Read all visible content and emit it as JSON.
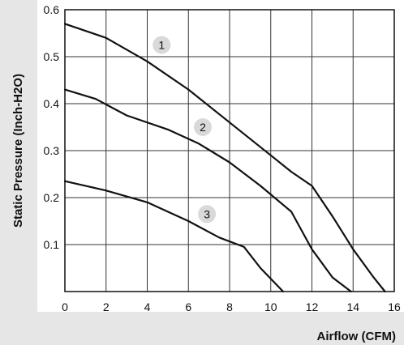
{
  "chart_data": {
    "type": "line",
    "xlabel": "Airflow (CFM)",
    "ylabel": "Static Pressure (Inch-H2O)",
    "xlim": [
      0,
      16
    ],
    "ylim": [
      0,
      0.6
    ],
    "x_ticks": [
      "0",
      "2",
      "4",
      "6",
      "8",
      "10",
      "12",
      "14",
      "16"
    ],
    "y_ticks": [
      "0.1",
      "0.2",
      "0.3",
      "0.4",
      "0.5",
      "0.6"
    ],
    "grid": true,
    "series": [
      {
        "name": "1",
        "points": [
          [
            0,
            0.57
          ],
          [
            2,
            0.54
          ],
          [
            4,
            0.49
          ],
          [
            6,
            0.43
          ],
          [
            8,
            0.36
          ],
          [
            10,
            0.29
          ],
          [
            11,
            0.255
          ],
          [
            12,
            0.225
          ],
          [
            13,
            0.16
          ],
          [
            14,
            0.09
          ],
          [
            15,
            0.03
          ],
          [
            15.55,
            0
          ]
        ]
      },
      {
        "name": "2",
        "points": [
          [
            0,
            0.43
          ],
          [
            1.5,
            0.41
          ],
          [
            3,
            0.375
          ],
          [
            5,
            0.345
          ],
          [
            6.5,
            0.315
          ],
          [
            8,
            0.275
          ],
          [
            9.5,
            0.225
          ],
          [
            11,
            0.17
          ],
          [
            12,
            0.09
          ],
          [
            13,
            0.03
          ],
          [
            13.9,
            0
          ]
        ]
      },
      {
        "name": "3",
        "points": [
          [
            0,
            0.235
          ],
          [
            2,
            0.215
          ],
          [
            4,
            0.19
          ],
          [
            6,
            0.15
          ],
          [
            7.5,
            0.115
          ],
          [
            8.7,
            0.095
          ],
          [
            9.5,
            0.05
          ],
          [
            10.6,
            0
          ]
        ]
      }
    ],
    "series_labels": [
      {
        "text": "1",
        "x": 4.7,
        "y": 0.525
      },
      {
        "text": "2",
        "x": 6.7,
        "y": 0.35
      },
      {
        "text": "3",
        "x": 6.9,
        "y": 0.165
      }
    ],
    "colors": {
      "line": "#111111",
      "grid": "#333333",
      "plot_background": "#ffffff",
      "page_background": "#e6e6e6",
      "badge": "#d9d9d9"
    }
  }
}
